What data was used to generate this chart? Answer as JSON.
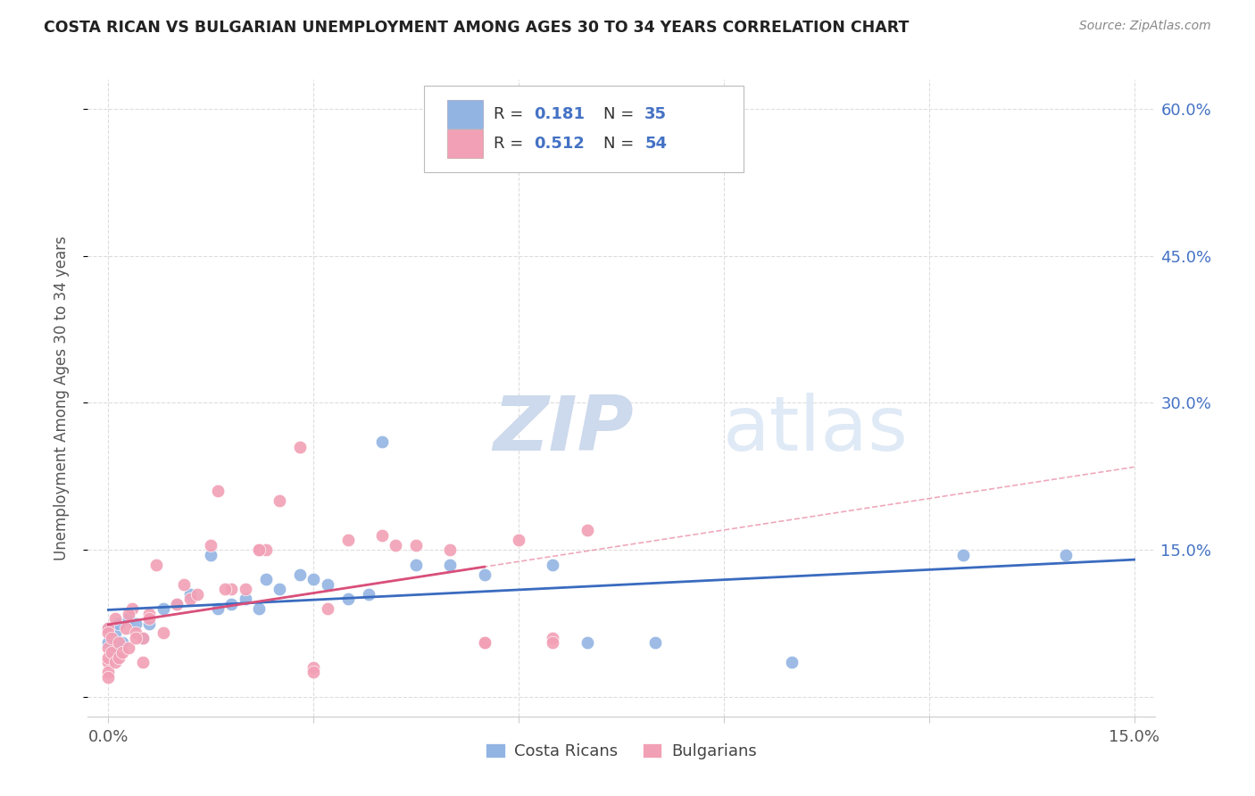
{
  "title": "COSTA RICAN VS BULGARIAN UNEMPLOYMENT AMONG AGES 30 TO 34 YEARS CORRELATION CHART",
  "source": "Source: ZipAtlas.com",
  "ylabel": "Unemployment Among Ages 30 to 34 years",
  "xlim": [
    0.0,
    15.0
  ],
  "ylim": [
    0.0,
    60.0
  ],
  "yticks": [
    0.0,
    15.0,
    30.0,
    45.0,
    60.0
  ],
  "yticklabels": [
    "",
    "15.0%",
    "30.0%",
    "45.0%",
    "60.0%"
  ],
  "xticks": [
    0.0,
    3.0,
    6.0,
    9.0,
    12.0,
    15.0
  ],
  "xticklabels": [
    "0.0%",
    "",
    "",
    "",
    "",
    "15.0%"
  ],
  "legend_r1": "R = 0.181",
  "legend_n1": "N = 35",
  "legend_r2": "R = 0.512",
  "legend_n2": "N = 54",
  "color_cr": "#92b4e3",
  "color_bg": "#f2a0b5",
  "color_cr_line": "#3a6bbf",
  "color_bg_line": "#d94f7a",
  "color_bg_dash": "#e8849e",
  "color_r_value": "#4472c4",
  "watermark_color": "#dce8f5",
  "cr_x": [
    0.0,
    0.0,
    0.05,
    0.1,
    0.15,
    0.2,
    0.3,
    0.4,
    0.5,
    0.6,
    0.8,
    1.0,
    1.2,
    1.5,
    1.6,
    1.8,
    2.0,
    2.3,
    2.5,
    2.8,
    3.0,
    3.2,
    3.5,
    4.0,
    4.5,
    5.0,
    5.5,
    6.5,
    7.0,
    8.0,
    10.0,
    12.5,
    14.0,
    2.2,
    3.8
  ],
  "cr_y": [
    5.5,
    7.0,
    5.0,
    6.5,
    7.5,
    5.5,
    8.0,
    7.5,
    6.0,
    7.5,
    9.0,
    9.5,
    10.5,
    14.5,
    9.0,
    9.5,
    10.0,
    12.0,
    11.0,
    12.5,
    12.0,
    11.5,
    10.0,
    26.0,
    13.5,
    13.5,
    12.5,
    13.5,
    5.5,
    5.5,
    3.5,
    14.5,
    14.5,
    9.0,
    10.5
  ],
  "bg_x": [
    0.0,
    0.0,
    0.0,
    0.0,
    0.0,
    0.0,
    0.0,
    0.05,
    0.05,
    0.1,
    0.1,
    0.15,
    0.15,
    0.2,
    0.25,
    0.3,
    0.35,
    0.4,
    0.5,
    0.5,
    0.6,
    0.7,
    0.8,
    1.0,
    1.1,
    1.2,
    1.5,
    1.6,
    1.8,
    2.0,
    2.2,
    2.3,
    2.5,
    2.8,
    3.0,
    3.2,
    3.5,
    4.0,
    4.5,
    5.0,
    5.5,
    6.0,
    6.5,
    7.0,
    0.3,
    0.4,
    0.6,
    1.3,
    1.7,
    2.2,
    3.0,
    4.2,
    5.5,
    6.5
  ],
  "bg_y": [
    3.5,
    5.0,
    2.5,
    7.0,
    4.0,
    6.5,
    2.0,
    4.5,
    6.0,
    3.5,
    8.0,
    5.5,
    4.0,
    4.5,
    7.0,
    5.0,
    9.0,
    6.5,
    3.5,
    6.0,
    8.5,
    13.5,
    6.5,
    9.5,
    11.5,
    10.0,
    15.5,
    21.0,
    11.0,
    11.0,
    15.0,
    15.0,
    20.0,
    25.5,
    3.0,
    9.0,
    16.0,
    16.5,
    15.5,
    15.0,
    5.5,
    16.0,
    6.0,
    17.0,
    8.5,
    6.0,
    8.0,
    10.5,
    11.0,
    15.0,
    2.5,
    15.5,
    5.5,
    5.5
  ]
}
